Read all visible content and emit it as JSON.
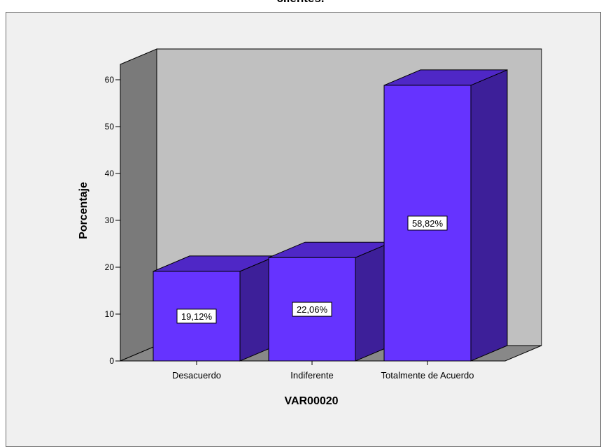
{
  "chart_data": {
    "type": "bar",
    "title": "clientes.",
    "categories": [
      "Desacuerdo",
      "Indiferente",
      "Totalmente de Acuerdo"
    ],
    "values": [
      19.12,
      22.06,
      58.82
    ],
    "data_labels": [
      "19,12%",
      "22,06%",
      "58,82%"
    ],
    "xlabel": "VAR00020",
    "ylabel": "Porcentaje",
    "yticks": [
      0,
      10,
      20,
      30,
      40,
      50,
      60
    ],
    "ylim": [
      0,
      60
    ],
    "bar_color": "#6633ff",
    "bar_side_color": "#3d1f99",
    "bar_top_color": "#4f27c6",
    "wall_color": "#c0c0c0",
    "side_wall_color": "#7a7a7a",
    "floor_color": "#888888"
  }
}
